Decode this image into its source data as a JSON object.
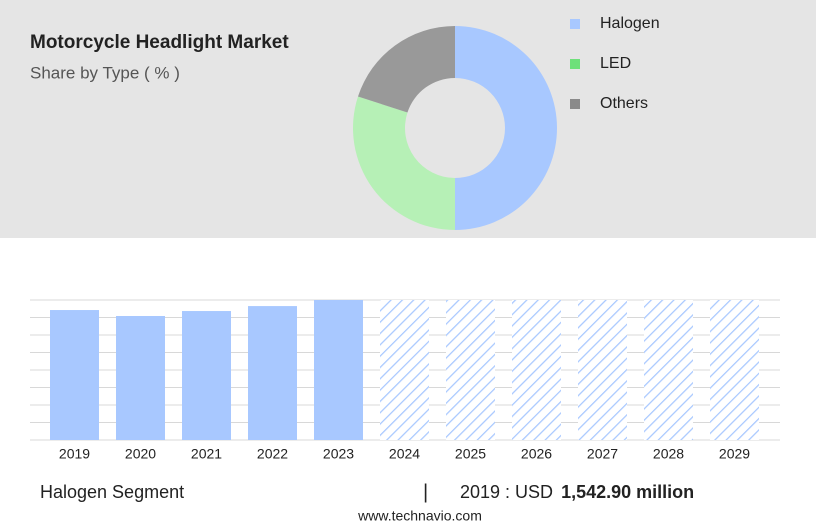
{
  "chart_data": [
    {
      "type": "pie",
      "title": "Motorcycle Headlight Market",
      "subtitle": "Share by Type ( % )",
      "categories": [
        "Halogen",
        "LED",
        "Others"
      ],
      "values": [
        50,
        30,
        20
      ],
      "colors": [
        "#a8c8ff",
        "#b6f0b6",
        "#999999"
      ],
      "legend_colors": [
        "#a8c8ff",
        "#6ee07a",
        "#8a8a8a"
      ]
    },
    {
      "type": "bar",
      "categories": [
        "2019",
        "2020",
        "2021",
        "2022",
        "2023",
        "2024",
        "2025",
        "2026",
        "2027",
        "2028",
        "2029"
      ],
      "values": [
        1542.9,
        1472,
        1531,
        1590,
        1662,
        null,
        null,
        null,
        null,
        null,
        null
      ],
      "color": "#a8c8ff",
      "ylim": [
        0,
        1662
      ]
    }
  ],
  "footer": {
    "segment": "Halogen Segment",
    "year_text": "2019 : USD",
    "value_text": "1,542.90 million",
    "source": "www.technavio.com"
  }
}
